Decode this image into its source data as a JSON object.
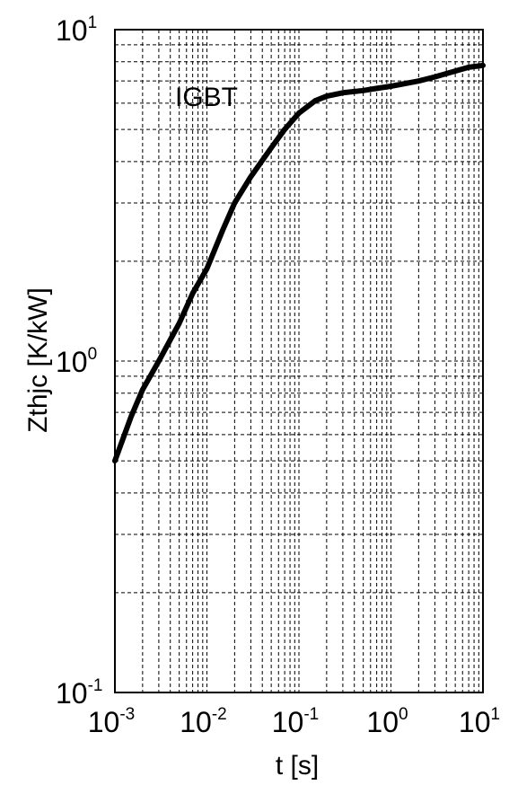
{
  "chart_data": {
    "type": "line",
    "title": "",
    "xlabel": "t [s]",
    "ylabel": "Zthjc [K/kW]",
    "x_scale": "log",
    "y_scale": "log",
    "xlim": [
      0.001,
      10
    ],
    "ylim": [
      0.1,
      10
    ],
    "grid": true,
    "x_ticks": [
      {
        "base": "10",
        "exp": "-3"
      },
      {
        "base": "10",
        "exp": "-2"
      },
      {
        "base": "10",
        "exp": "-1"
      },
      {
        "base": "10",
        "exp": "0"
      },
      {
        "base": "10",
        "exp": "1"
      }
    ],
    "y_ticks": [
      {
        "base": "10",
        "exp": "-1"
      },
      {
        "base": "10",
        "exp": "0"
      },
      {
        "base": "10",
        "exp": "1"
      }
    ],
    "annotation": "IGBT",
    "series": [
      {
        "color": "#000000",
        "x": [
          0.001,
          0.0015,
          0.002,
          0.003,
          0.005,
          0.007,
          0.01,
          0.015,
          0.02,
          0.03,
          0.05,
          0.07,
          0.1,
          0.15,
          0.2,
          0.3,
          0.5,
          0.7,
          1,
          2,
          3,
          5,
          7,
          10
        ],
        "y": [
          0.5,
          0.68,
          0.82,
          1.0,
          1.3,
          1.6,
          1.9,
          2.5,
          3.0,
          3.6,
          4.4,
          5.0,
          5.6,
          6.1,
          6.3,
          6.45,
          6.55,
          6.65,
          6.75,
          7.0,
          7.2,
          7.5,
          7.7,
          7.8
        ]
      }
    ]
  }
}
